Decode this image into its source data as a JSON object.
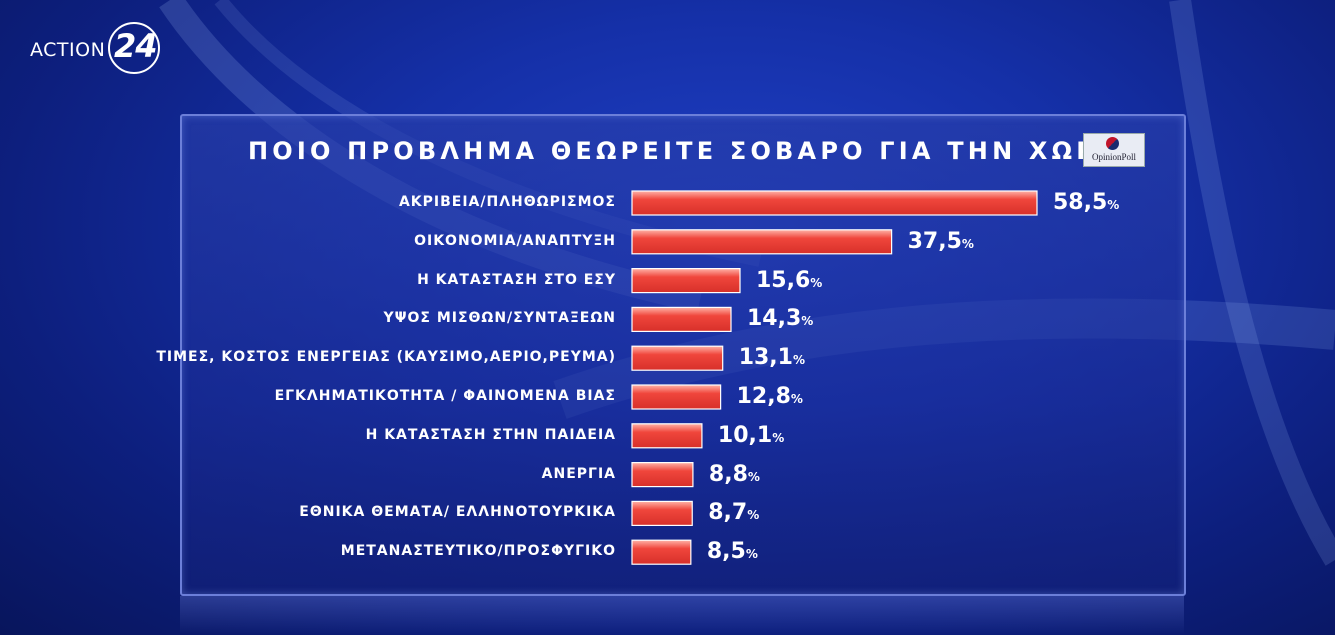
{
  "channel": {
    "word": "ACTION",
    "number": "24"
  },
  "poll_logo": {
    "text": "OpinionPoll"
  },
  "chart_data": {
    "type": "bar",
    "orientation": "horizontal",
    "title": "ΠΟΙΟ ΠΡΟΒΛΗΜΑ ΘΕΩΡΕΙΤΕ ΣΟΒΑΡΟ ΓΙΑ ΤΗΝ ΧΩΡΑ;",
    "unit": "%",
    "categories": [
      "ΑΚΡΙΒΕΙΑ/ΠΛΗΘΩΡΙΣΜΟΣ",
      "ΟΙΚΟΝΟΜΙΑ/ΑΝΑΠΤΥΞΗ",
      "Η ΚΑΤΑΣΤΑΣΗ ΣΤΟ ΕΣΥ",
      "ΥΨΟΣ ΜΙΣΘΩΝ/ΣΥΝΤΑΞΕΩΝ",
      "ΤΙΜΕΣ, ΚΟΣΤΟΣ ΕΝΕΡΓΕΙΑΣ (ΚΑΥΣΙΜΟ,ΑΕΡΙΟ,ΡΕΥΜΑ)",
      "ΕΓΚΛΗΜΑΤΙΚΟΤΗΤΑ / ΦΑΙΝΟΜΕΝΑ ΒΙΑΣ",
      "Η ΚΑΤΑΣΤΑΣΗ ΣΤΗΝ ΠΑΙΔΕΙΑ",
      "ΑΝΕΡΓΙΑ",
      "ΕΘΝΙΚΑ ΘΕΜΑΤΑ/ ΕΛΛΗΝΟΤΟΥΡΚΙΚΑ",
      "ΜΕΤΑΝΑΣΤΕΥΤΙΚΟ/ΠΡΟΣΦΥΓΙΚΟ"
    ],
    "values": [
      58.5,
      37.5,
      15.6,
      14.3,
      13.1,
      12.8,
      10.1,
      8.8,
      8.7,
      8.5
    ],
    "value_labels": [
      "58,5",
      "37,5",
      "15,6",
      "14,3",
      "13,1",
      "12,8",
      "10,1",
      "8,8",
      "8,7",
      "8,5"
    ],
    "bar_color": "#f0463c",
    "bar_highlight": "#ffb3a8"
  }
}
